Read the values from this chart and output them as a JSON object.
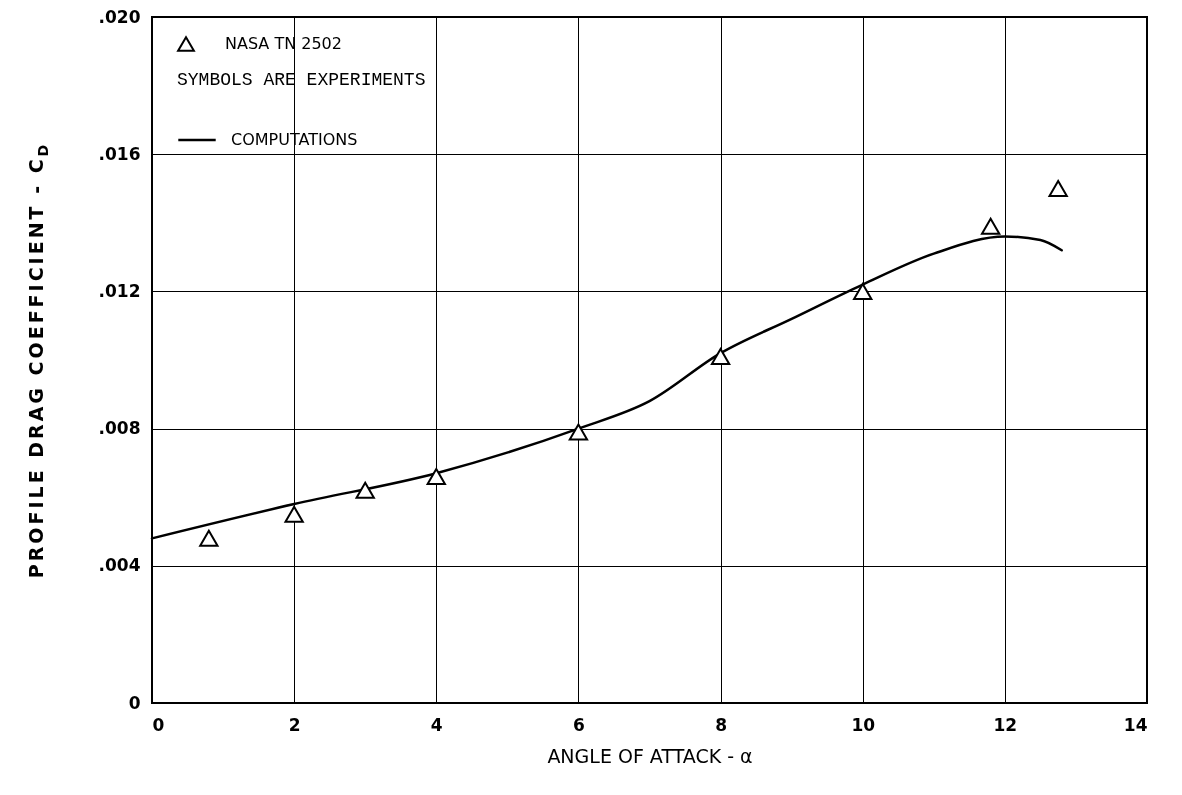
{
  "chart_data": {
    "type": "scatter",
    "xlabel": "ANGLE OF ATTACK - α",
    "ylabel": "PROFILE DRAG COEFFICIENT - C$_{D}$",
    "xlim": [
      0,
      14
    ],
    "xticks": [
      0,
      2,
      4,
      6,
      8,
      10,
      12,
      14
    ],
    "ylim": [
      0,
      0.02
    ],
    "yticks": [
      0,
      {
        "value": 0.004,
        "label": ".004"
      },
      {
        "value": 0.008,
        "label": ".008"
      },
      {
        "value": 0.012,
        "label": ".012"
      },
      {
        "value": 0.016,
        "label": ".016"
      },
      {
        "value": 0.02,
        "label": ".020"
      }
    ],
    "grid": true,
    "legend": "top left",
    "annotations": [
      "SYMBOLS ARE EXPERIMENTS"
    ],
    "series": [
      {
        "name": "NASA TN 2502",
        "marker": "triangle",
        "color": "#000000",
        "x": [
          0.8,
          2,
          3,
          4,
          6,
          8,
          10,
          11.8,
          12.75
        ],
        "values": [
          0.0048,
          0.0055,
          0.0062,
          0.0066,
          0.0079,
          0.0101,
          0.012,
          0.0139,
          0.015
        ]
      },
      {
        "name": "COMPUTATIONS",
        "type": "line",
        "color": "#000000",
        "line_style": "solid",
        "x": [
          0,
          2,
          4,
          6,
          7,
          8,
          9,
          10,
          11,
          12,
          12.5,
          12.8
        ],
        "values": [
          0.0048,
          0.0058,
          0.0067,
          0.008,
          0.0088,
          0.0102,
          0.0112,
          0.0122,
          0.0131,
          0.0136,
          0.0135,
          0.0132
        ]
      }
    ]
  }
}
